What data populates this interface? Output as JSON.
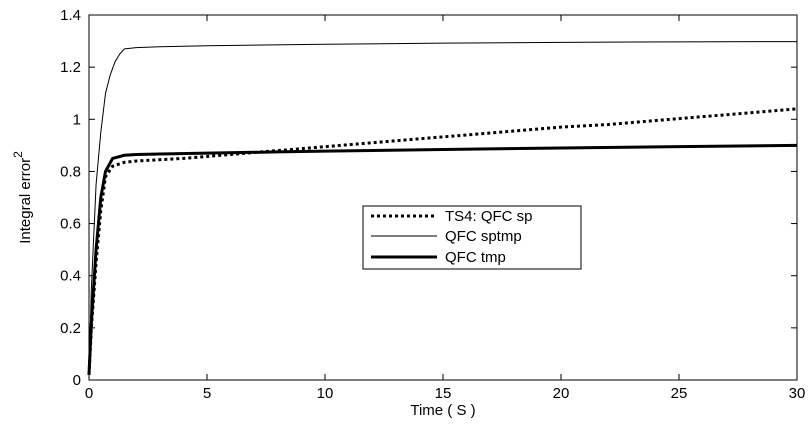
{
  "chart_data": {
    "type": "line",
    "title": "",
    "xlabel": "Time ( S )",
    "ylabel": "Integral error",
    "ylabel_superscript": "2",
    "xlim": [
      0,
      30
    ],
    "ylim": [
      0,
      1.4
    ],
    "xticks": [
      0,
      5,
      10,
      15,
      20,
      25,
      30
    ],
    "yticks": [
      0,
      0.2,
      0.4,
      0.6,
      0.8,
      1,
      1.2,
      1.4
    ],
    "xtick_labels": [
      "0",
      "5",
      "10",
      "15",
      "20",
      "25",
      "30"
    ],
    "ytick_labels": [
      "0",
      "0.2",
      "0.4",
      "0.6",
      "0.8",
      "1",
      "1.2",
      "1.4"
    ],
    "grid": false,
    "legend_position": "center-right",
    "series": [
      {
        "name": "TS4: QFC sp",
        "style": "dotted",
        "color": "#000000",
        "x": [
          0,
          0.1,
          0.3,
          0.5,
          0.7,
          1.0,
          1.5,
          2,
          4,
          6,
          8,
          10,
          12,
          14,
          16,
          18,
          20,
          22,
          24,
          26,
          28,
          30
        ],
        "y": [
          0.02,
          0.2,
          0.45,
          0.65,
          0.78,
          0.82,
          0.835,
          0.84,
          0.85,
          0.865,
          0.88,
          0.895,
          0.91,
          0.925,
          0.94,
          0.955,
          0.97,
          0.98,
          0.995,
          1.01,
          1.025,
          1.04
        ]
      },
      {
        "name": "QFC sptmp",
        "style": "solid-thin",
        "color": "#000000",
        "x": [
          0,
          0.1,
          0.3,
          0.5,
          0.7,
          0.9,
          1.1,
          1.3,
          1.5,
          2,
          3,
          5,
          10,
          15,
          20,
          25,
          30
        ],
        "y": [
          0.02,
          0.35,
          0.75,
          0.95,
          1.1,
          1.17,
          1.22,
          1.25,
          1.27,
          1.275,
          1.278,
          1.282,
          1.288,
          1.292,
          1.295,
          1.297,
          1.298
        ]
      },
      {
        "name": "QFC tmp",
        "style": "solid-thick",
        "color": "#000000",
        "x": [
          0,
          0.1,
          0.3,
          0.5,
          0.7,
          1.0,
          1.5,
          2,
          3,
          5,
          8,
          10,
          15,
          20,
          25,
          30
        ],
        "y": [
          0.02,
          0.22,
          0.5,
          0.7,
          0.8,
          0.85,
          0.862,
          0.865,
          0.867,
          0.87,
          0.875,
          0.878,
          0.884,
          0.89,
          0.895,
          0.9
        ]
      }
    ]
  }
}
